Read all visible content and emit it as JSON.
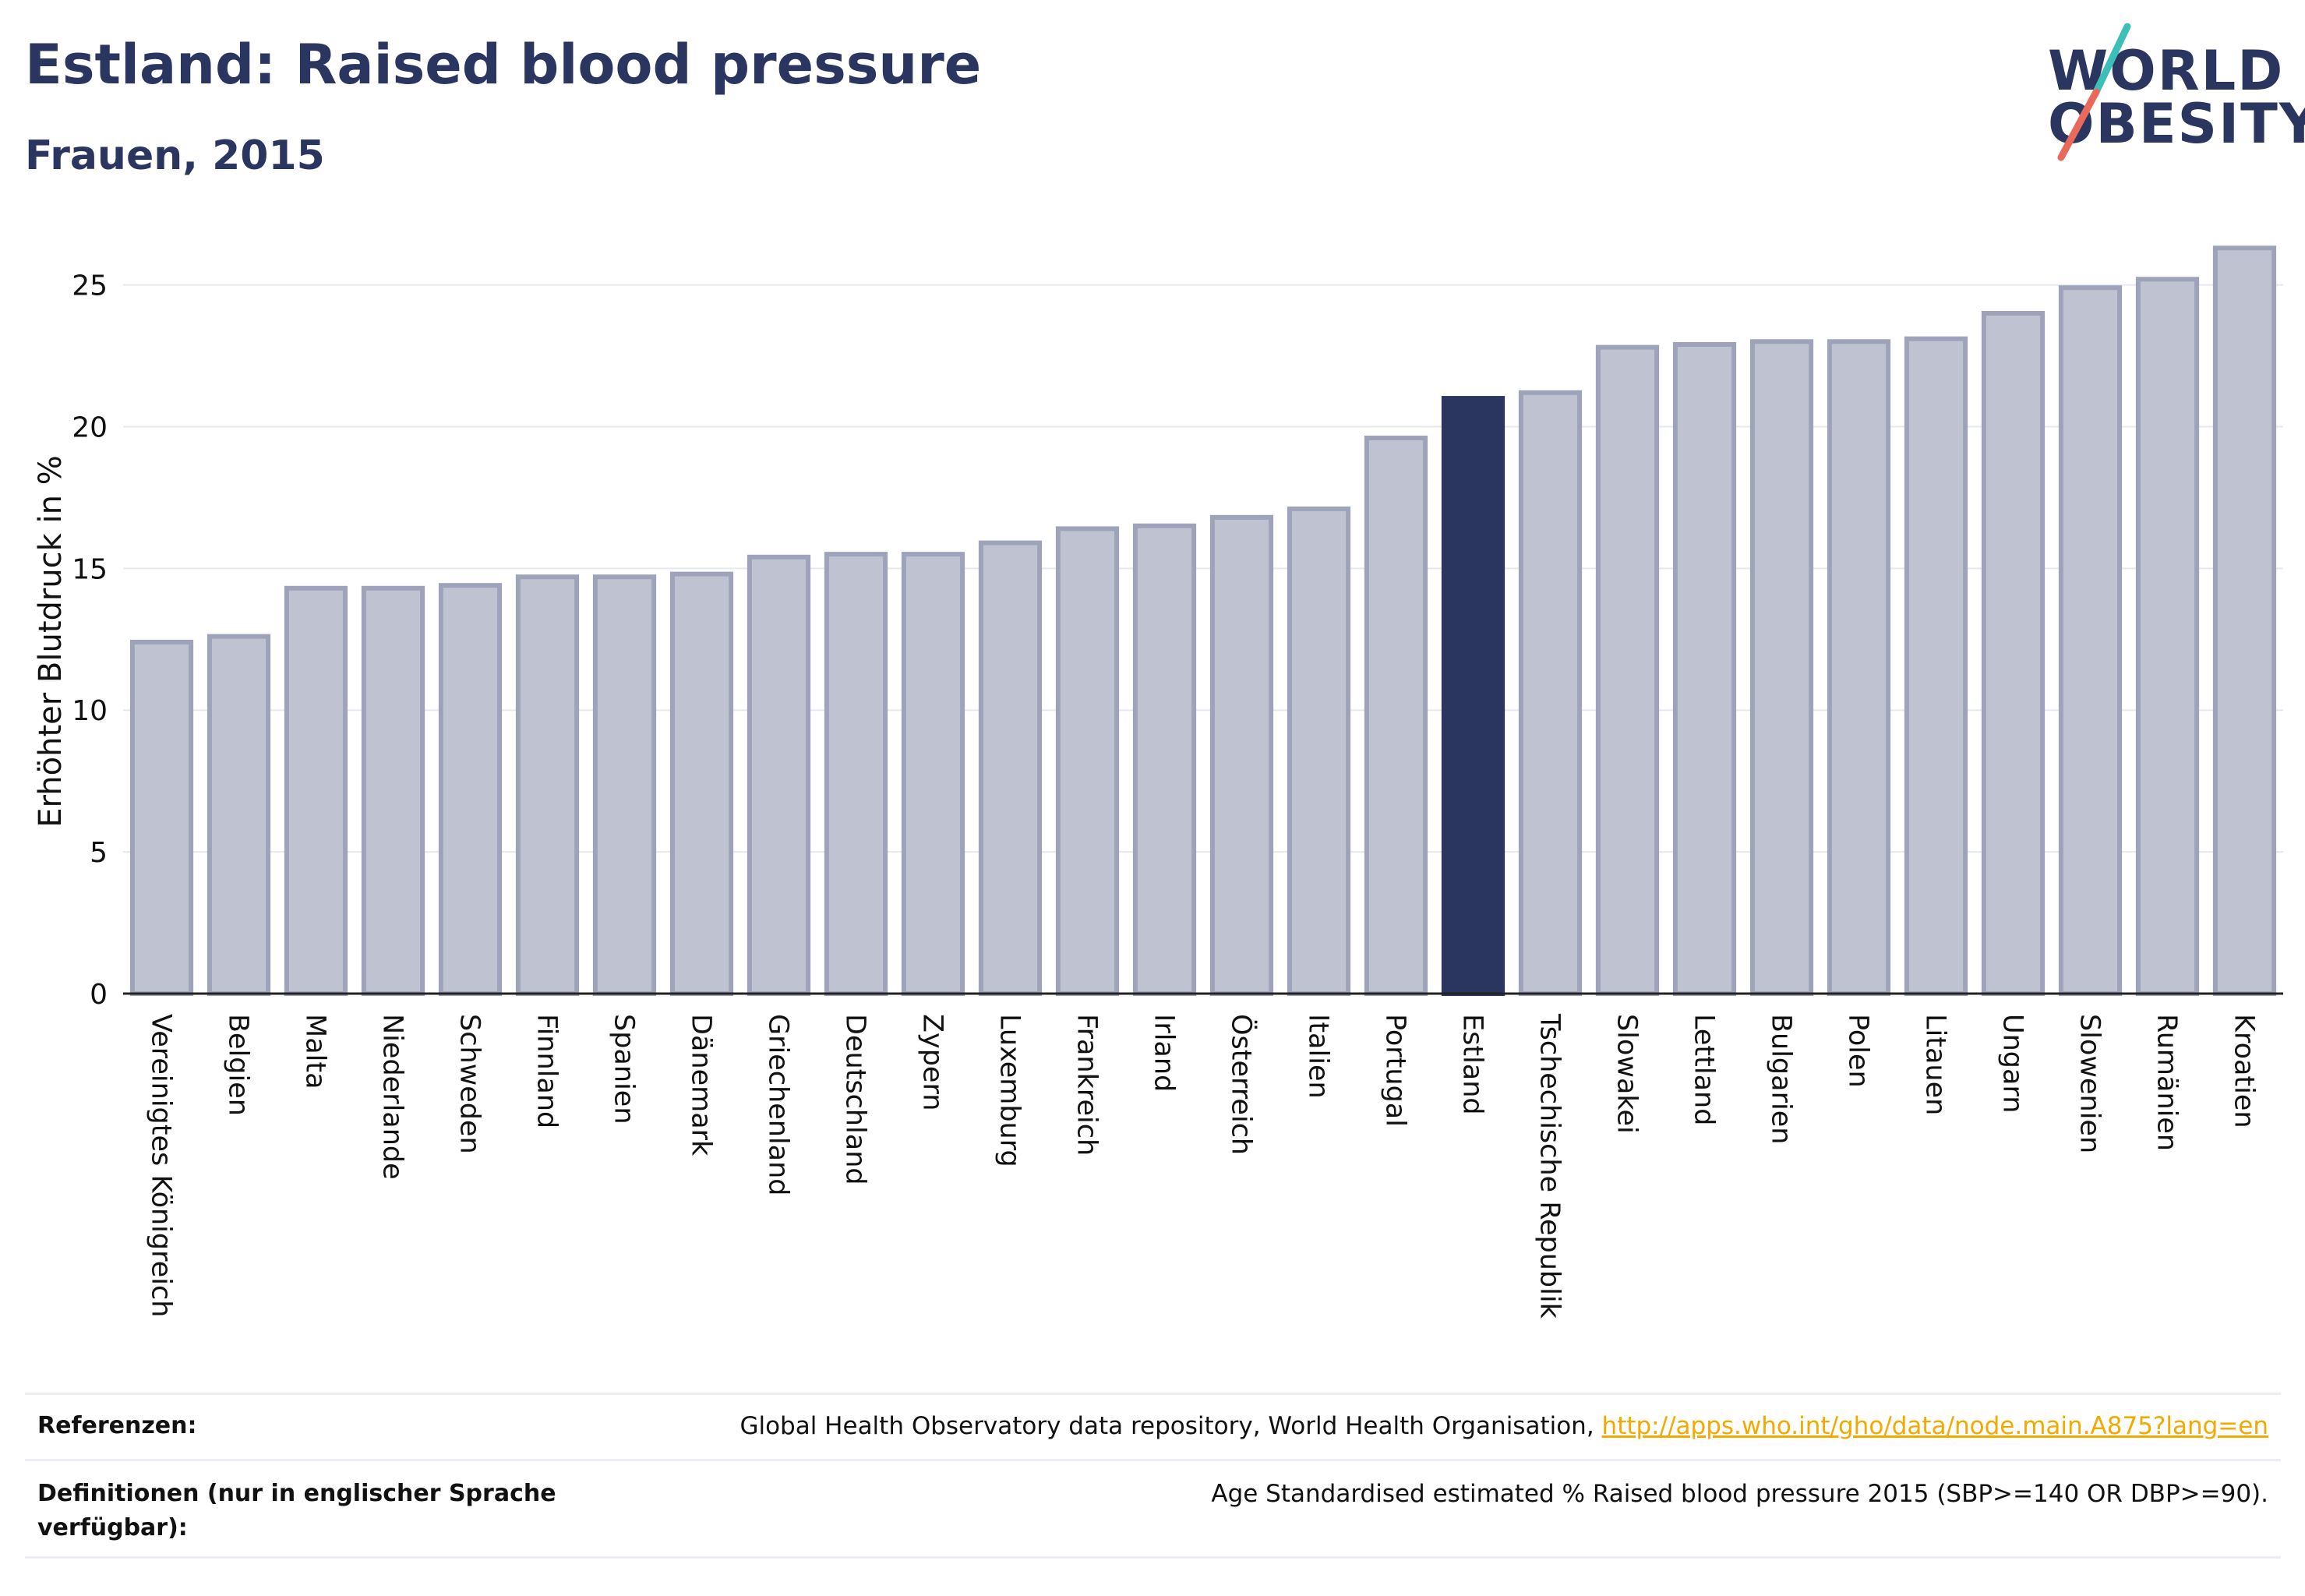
{
  "header": {
    "title": "Estland: Raised blood pressure",
    "subtitle": "Frauen, 2015"
  },
  "logo": {
    "line1": "WORLD",
    "line2": "OBESITY"
  },
  "colors": {
    "highlight": "#2b3660",
    "bar_fill": "#bfc2d0",
    "bar_stroke": "#9ea3ba",
    "link": "#f2a900",
    "logo_slash_teal": "#3bbfb8",
    "logo_slash_coral": "#e9695a"
  },
  "chart_data": {
    "type": "bar",
    "ylabel": "Erhöhter Blutdruck in %",
    "ylim": [
      0,
      26.5
    ],
    "yticks": [
      0,
      5,
      10,
      15,
      20,
      25
    ],
    "grid": true,
    "highlight_category": "Estland",
    "categories": [
      "Vereinigtes Königreich",
      "Belgien",
      "Malta",
      "Niederlande",
      "Schweden",
      "Finnland",
      "Spanien",
      "Dänemark",
      "Griechenland",
      "Deutschland",
      "Zypern",
      "Luxemburg",
      "Frankreich",
      "Irland",
      "Österreich",
      "Italien",
      "Portugal",
      "Estland",
      "Tschechische Republik",
      "Slowakei",
      "Lettland",
      "Bulgarien",
      "Polen",
      "Litauen",
      "Ungarn",
      "Slowenien",
      "Rumänien",
      "Kroatien"
    ],
    "values": [
      12.4,
      12.6,
      14.3,
      14.3,
      14.4,
      14.7,
      14.7,
      14.8,
      15.4,
      15.5,
      15.5,
      15.9,
      16.4,
      16.5,
      16.8,
      17.1,
      19.6,
      21.0,
      21.2,
      22.8,
      22.9,
      23.0,
      23.0,
      23.1,
      24.0,
      24.9,
      25.2,
      26.3
    ]
  },
  "footer": {
    "references_label": "Referenzen:",
    "references_text": "Global Health Observatory data repository, World Health Organisation, ",
    "references_link": "http://apps.who.int/gho/data/node.main.A875?lang=en",
    "definitions_label": "Definitionen (nur in englischer Sprache verfügbar):",
    "definitions_text": "Age Standardised estimated % Raised blood pressure 2015 (SBP>=140 OR DBP>=90)."
  }
}
